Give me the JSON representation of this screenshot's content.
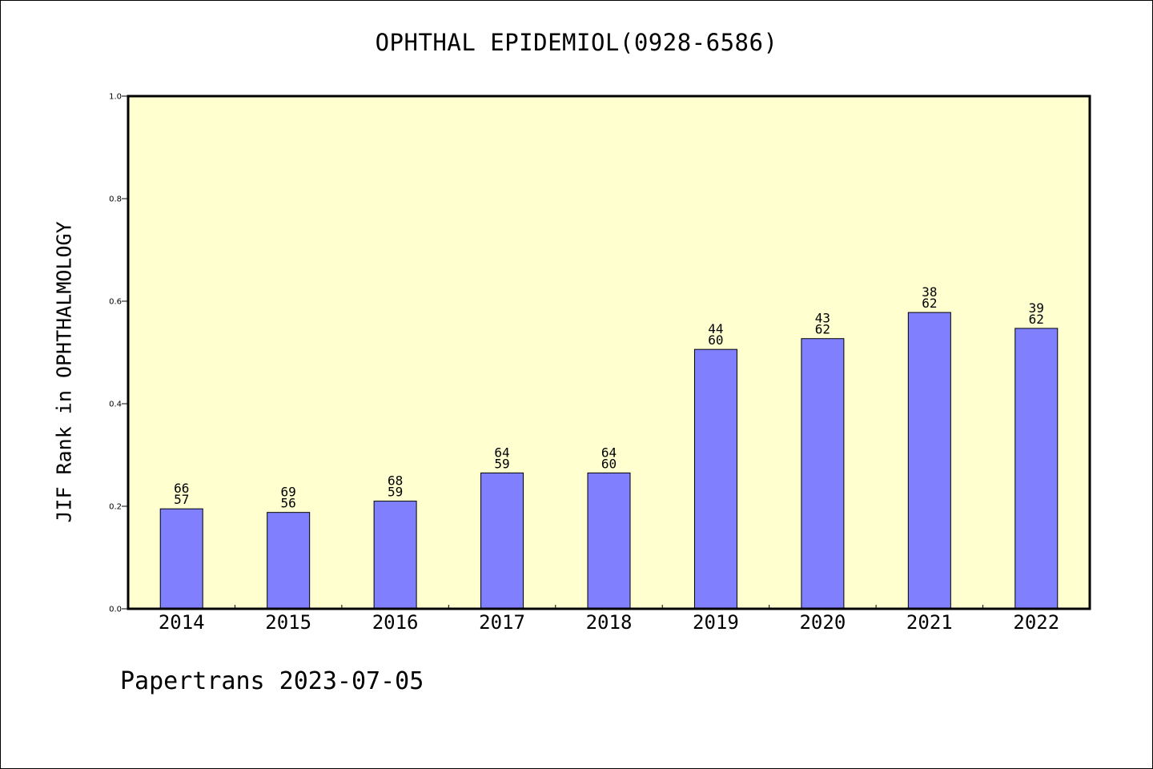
{
  "chart_data": {
    "type": "bar",
    "title": "OPHTHAL EPIDEMIOL(0928-6586)",
    "ylabel": "JIF Rank in OPHTHALMOLOGY",
    "xlabel": "",
    "footer": "Papertrans 2023-07-05",
    "categories": [
      "2014",
      "2015",
      "2016",
      "2017",
      "2018",
      "2019",
      "2020",
      "2021",
      "2022"
    ],
    "values": [
      0.195,
      0.188,
      0.21,
      0.265,
      0.265,
      0.506,
      0.527,
      0.578,
      0.547
    ],
    "labels_top": [
      "66",
      "69",
      "68",
      "64",
      "64",
      "44",
      "43",
      "38",
      "39"
    ],
    "labels_bottom": [
      "57",
      "56",
      "59",
      "59",
      "60",
      "60",
      "62",
      "62",
      "62"
    ],
    "ylim": [
      0,
      1.0
    ],
    "yticks": [
      "0.0",
      "0.2",
      "0.4",
      "0.6",
      "0.8",
      "1.0"
    ],
    "grid": false,
    "legend": "none",
    "colors": {
      "bar": "#8080ff",
      "plot_background": "#ffffd0",
      "axis": "#000000"
    }
  }
}
